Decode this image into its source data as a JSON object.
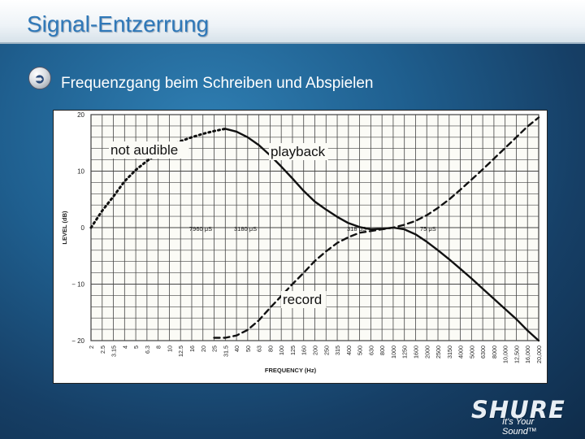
{
  "slide": {
    "title": "Signal-Entzerrung",
    "bullet": "Frequenzgang beim Schreiben und Abspielen"
  },
  "logo": {
    "brand": "SHURE",
    "tagline": "It's Your Sound™"
  },
  "chart_data": {
    "type": "line",
    "xlabel": "FREQUENCY (Hz)",
    "ylabel": "LEVEL (dB)",
    "ylim": [
      -20,
      20
    ],
    "yticks": [
      20,
      10,
      0,
      -10,
      -20
    ],
    "ytick_labels": [
      "20",
      "10",
      "0",
      "− 10",
      "− 20"
    ],
    "xscale": "log",
    "categories": [
      "2",
      "2.5",
      "3.15",
      "4",
      "5",
      "6.3",
      "8",
      "10",
      "12.5",
      "16",
      "20",
      "25",
      "31.5",
      "40",
      "50",
      "63",
      "80",
      "100",
      "125",
      "160",
      "200",
      "250",
      "315",
      "400",
      "500",
      "630",
      "800",
      "1000",
      "1250",
      "1600",
      "2000",
      "2500",
      "3150",
      "4000",
      "5000",
      "6300",
      "8000",
      "10,000",
      "12,500",
      "16,000",
      "20,000"
    ],
    "grid": true,
    "series": [
      {
        "name": "playback",
        "style": "solid",
        "y": [
          null,
          null,
          null,
          null,
          null,
          null,
          null,
          null,
          null,
          null,
          null,
          null,
          17.5,
          17,
          16,
          14.6,
          12.8,
          10.8,
          8.7,
          6.5,
          4.6,
          3.2,
          1.9,
          0.8,
          0.1,
          -0.3,
          -0.2,
          0,
          -0.3,
          -1.2,
          -2.5,
          -4,
          -5.6,
          -7.3,
          -9,
          -10.8,
          -12.6,
          -14.4,
          -16.2,
          -18.2,
          -20
        ]
      },
      {
        "name": "not audible",
        "style": "dotted",
        "y": [
          0,
          3,
          5.5,
          8.2,
          10.2,
          11.8,
          13.2,
          14.3,
          15.3,
          16,
          16.6,
          17.1,
          17.5,
          null,
          null,
          null,
          null,
          null,
          null,
          null,
          null,
          null,
          null,
          null,
          null,
          null,
          null,
          null,
          null,
          null,
          null,
          null,
          null,
          null,
          null,
          null,
          null,
          null,
          null,
          null,
          null
        ]
      },
      {
        "name": "record",
        "style": "dashed",
        "y": [
          null,
          null,
          null,
          null,
          null,
          null,
          null,
          null,
          null,
          null,
          null,
          -19.5,
          -19.5,
          -19.1,
          -18.1,
          -16.4,
          -14.2,
          -12.1,
          -10,
          -8,
          -5.9,
          -4.2,
          -2.7,
          -1.7,
          -0.9,
          -0.6,
          -0.3,
          0,
          0.5,
          1.2,
          2.2,
          3.5,
          5,
          6.7,
          8.5,
          10.3,
          12.2,
          14.1,
          16,
          17.9,
          19.5
        ]
      }
    ],
    "annotations": [
      {
        "text": "not audible"
      },
      {
        "text": "playback"
      },
      {
        "text": "record"
      },
      {
        "text": "7960 μS"
      },
      {
        "text": "3180 μS"
      },
      {
        "text": "318 μS"
      },
      {
        "text": "75 μS"
      }
    ]
  }
}
